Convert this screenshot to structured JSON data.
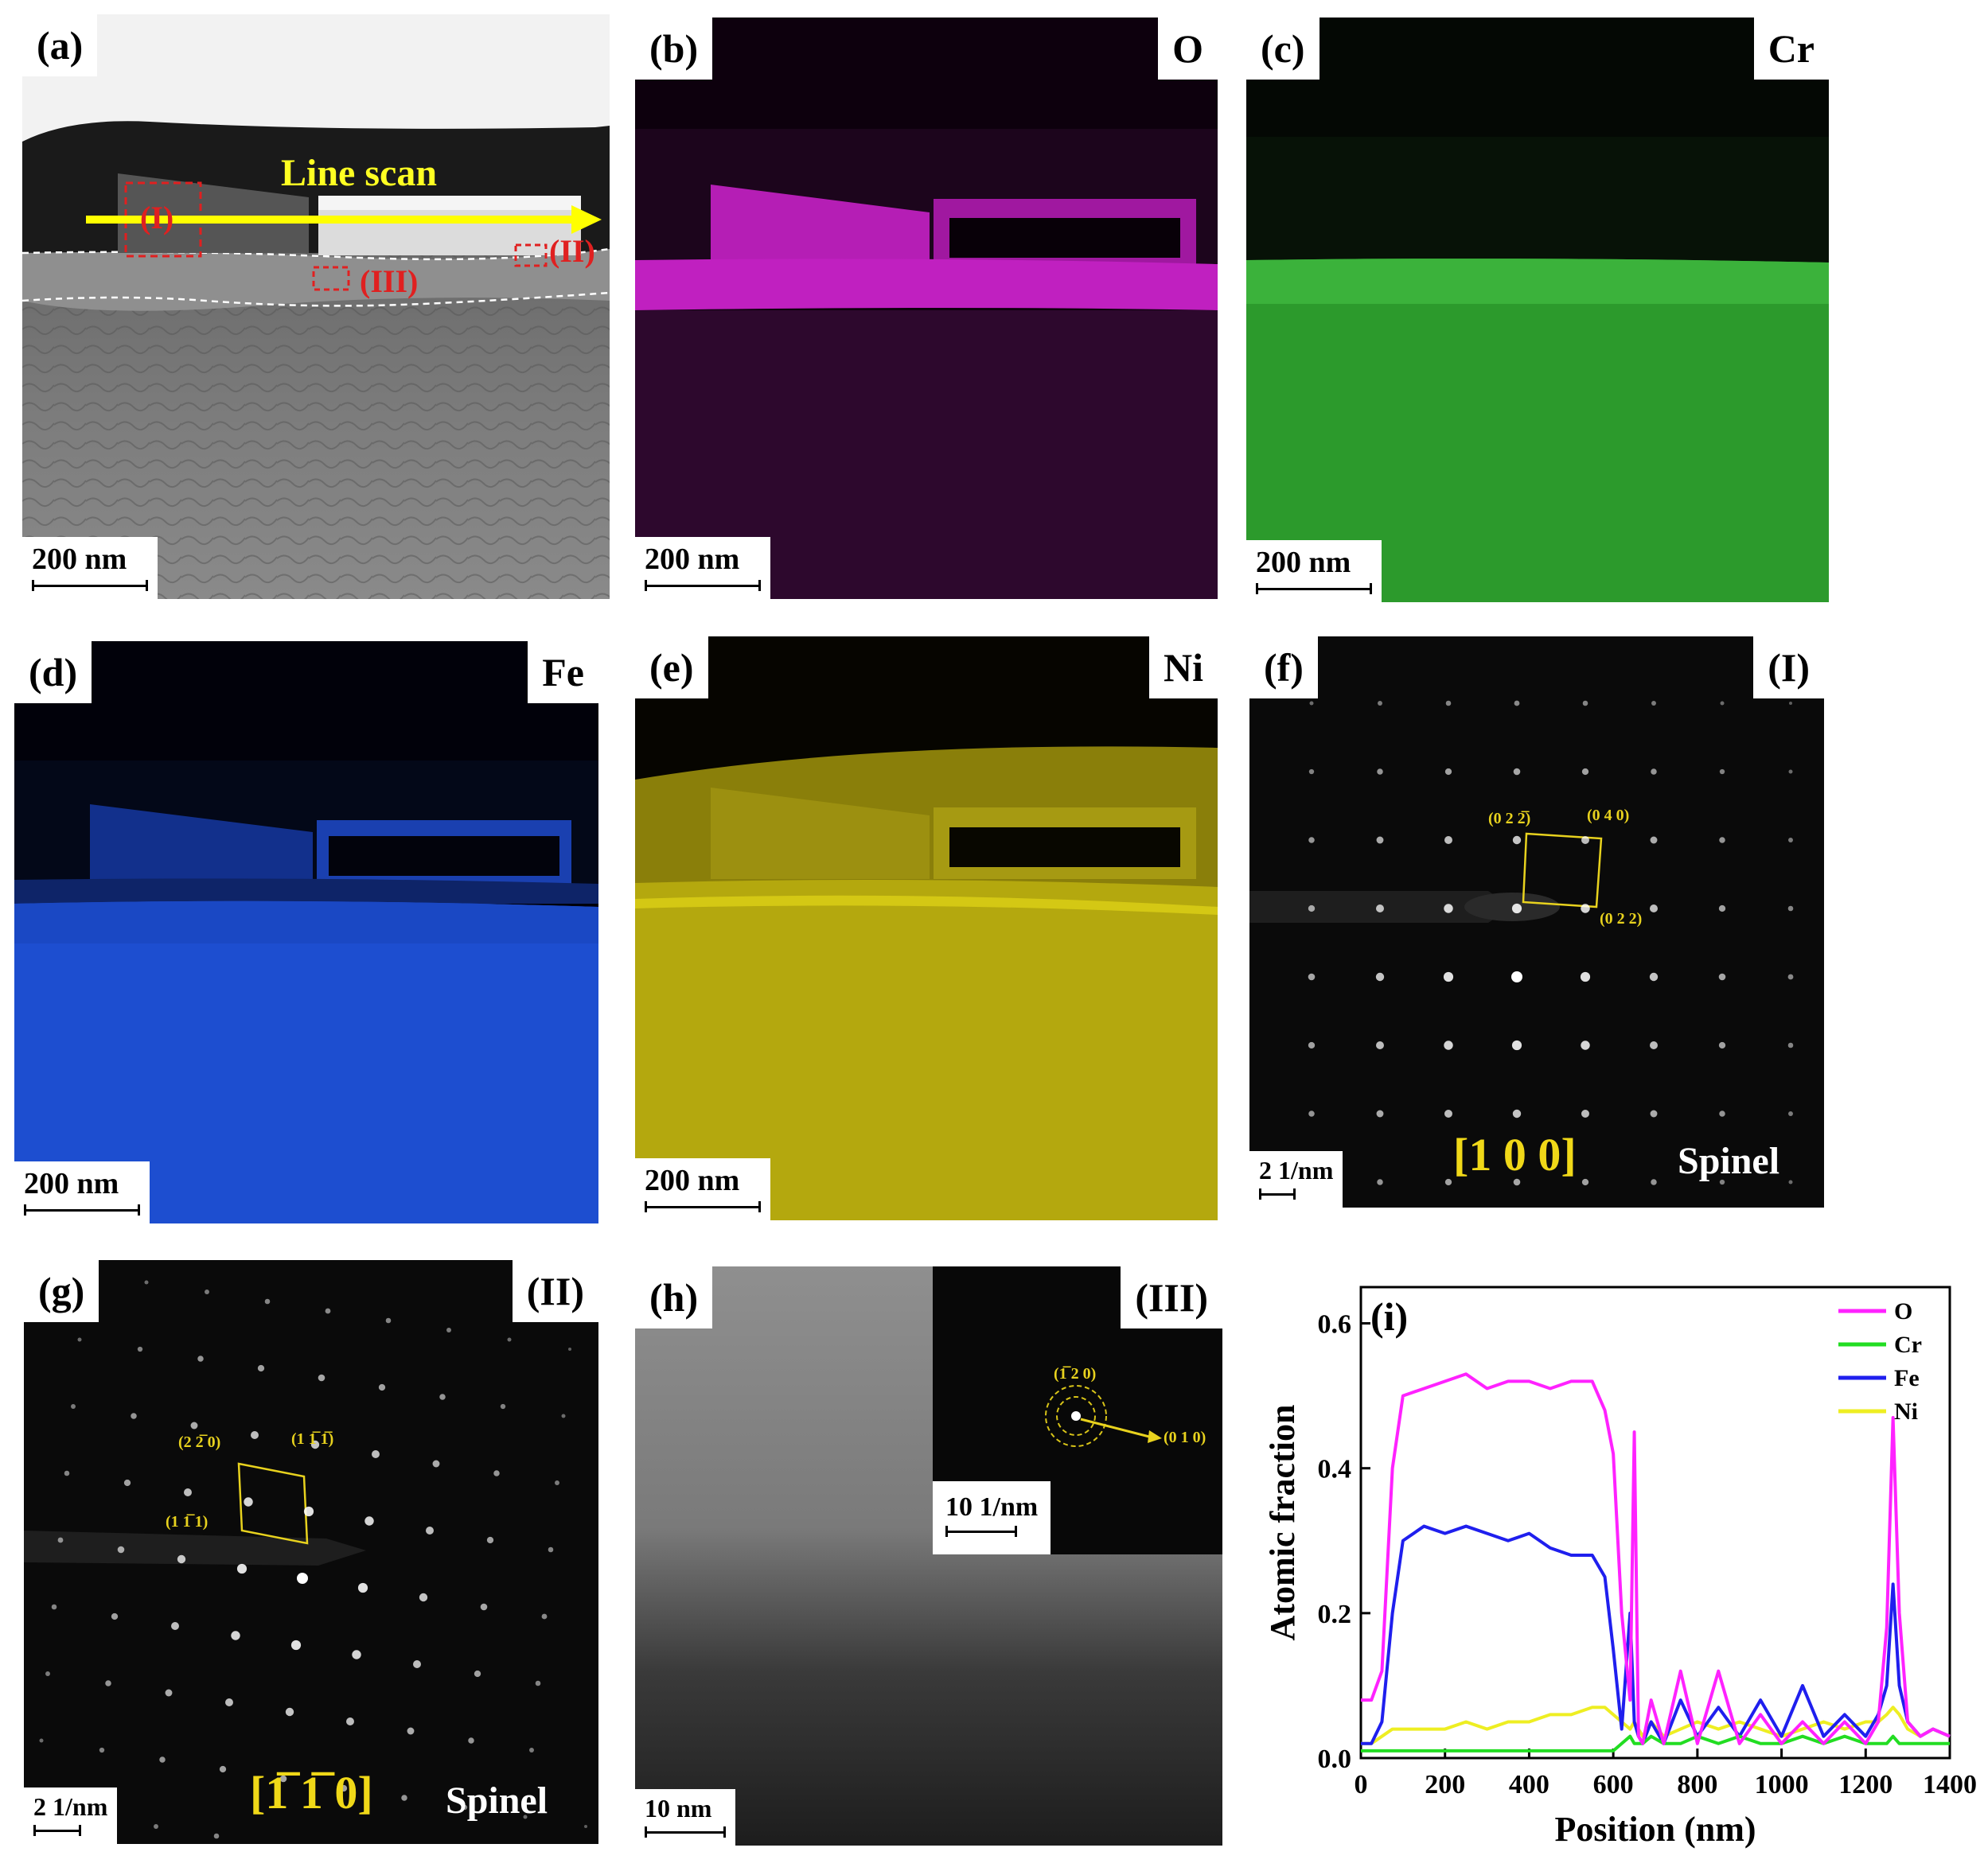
{
  "panels": {
    "a": {
      "label": "(a)",
      "arrow_label": "Line scan",
      "regions": [
        "(I)",
        "(II)",
        "(III)"
      ],
      "scale": "200 nm"
    },
    "b": {
      "label": "(b)",
      "element": "O",
      "scale": "200 nm",
      "color": "#c020c0"
    },
    "c": {
      "label": "(c)",
      "element": "Cr",
      "scale": "200 nm",
      "color": "#2ea82e"
    },
    "d": {
      "label": "(d)",
      "element": "Fe",
      "scale": "200 nm",
      "color": "#1e50d2"
    },
    "e": {
      "label": "(e)",
      "element": "Ni",
      "scale": "200 nm",
      "color": "#b4a80e"
    },
    "f": {
      "label": "(f)",
      "region": "(I)",
      "scale": "2 1/nm",
      "zone_axis": "[1 0 0]",
      "phase": "Spinel",
      "spots": [
        "(0 2 2̅)",
        "(0 4 0)",
        "(0 2 2)"
      ]
    },
    "g": {
      "label": "(g)",
      "region": "(II)",
      "scale": "2 1/nm",
      "zone_axis": "[1̅ 1̅ 0]",
      "phase": "Spinel",
      "spots": [
        "(2 2̅ 0)",
        "(1 1̅ 1̅)",
        "(1 1̅ 1)"
      ]
    },
    "h": {
      "label": "(h)",
      "region": "(III)",
      "scale": "10 nm",
      "inset_scale": "10 1/nm",
      "spots": [
        "(1̅ 2 0)",
        "(0 1 0)"
      ]
    }
  },
  "chart_data": {
    "label": "(i)",
    "type": "line",
    "xlabel": "Position (nm)",
    "ylabel": "Atomic fraction",
    "xlim": [
      0,
      1400
    ],
    "ylim": [
      0,
      0.65
    ],
    "xticks": [
      0,
      200,
      400,
      600,
      800,
      1000,
      1200,
      1400
    ],
    "yticks": [
      0.0,
      0.2,
      0.4,
      0.6
    ],
    "legend_position": "top-right",
    "x": [
      0,
      25,
      50,
      75,
      100,
      150,
      200,
      250,
      300,
      350,
      400,
      450,
      500,
      550,
      580,
      600,
      620,
      640,
      650,
      660,
      670,
      690,
      720,
      760,
      800,
      850,
      900,
      950,
      1000,
      1050,
      1100,
      1150,
      1200,
      1230,
      1250,
      1265,
      1280,
      1300,
      1330,
      1360,
      1400
    ],
    "series": [
      {
        "name": "O",
        "color": "#ff22ff",
        "values": [
          0.08,
          0.08,
          0.12,
          0.4,
          0.5,
          0.51,
          0.52,
          0.53,
          0.51,
          0.52,
          0.52,
          0.51,
          0.52,
          0.52,
          0.48,
          0.42,
          0.2,
          0.08,
          0.45,
          0.03,
          0.02,
          0.08,
          0.02,
          0.12,
          0.02,
          0.12,
          0.02,
          0.06,
          0.02,
          0.05,
          0.02,
          0.05,
          0.02,
          0.05,
          0.18,
          0.47,
          0.2,
          0.05,
          0.03,
          0.04,
          0.03
        ]
      },
      {
        "name": "Cr",
        "color": "#22dd22",
        "values": [
          0.01,
          0.01,
          0.01,
          0.01,
          0.01,
          0.01,
          0.01,
          0.01,
          0.01,
          0.01,
          0.01,
          0.01,
          0.01,
          0.01,
          0.01,
          0.01,
          0.02,
          0.03,
          0.02,
          0.02,
          0.02,
          0.03,
          0.02,
          0.02,
          0.03,
          0.02,
          0.03,
          0.02,
          0.02,
          0.03,
          0.02,
          0.03,
          0.02,
          0.02,
          0.02,
          0.03,
          0.02,
          0.02,
          0.02,
          0.02,
          0.02
        ]
      },
      {
        "name": "Fe",
        "color": "#1f1fee",
        "values": [
          0.02,
          0.02,
          0.05,
          0.2,
          0.3,
          0.32,
          0.31,
          0.32,
          0.31,
          0.3,
          0.31,
          0.29,
          0.28,
          0.28,
          0.25,
          0.15,
          0.04,
          0.2,
          0.05,
          0.03,
          0.02,
          0.05,
          0.02,
          0.08,
          0.03,
          0.07,
          0.03,
          0.08,
          0.03,
          0.1,
          0.03,
          0.06,
          0.03,
          0.06,
          0.1,
          0.24,
          0.1,
          0.05,
          0.03,
          0.04,
          0.03
        ]
      },
      {
        "name": "Ni",
        "color": "#eeee22",
        "values": [
          0.02,
          0.02,
          0.03,
          0.04,
          0.04,
          0.04,
          0.04,
          0.05,
          0.04,
          0.05,
          0.05,
          0.06,
          0.06,
          0.07,
          0.07,
          0.06,
          0.05,
          0.04,
          0.05,
          0.04,
          0.03,
          0.05,
          0.03,
          0.04,
          0.05,
          0.04,
          0.05,
          0.04,
          0.03,
          0.04,
          0.05,
          0.04,
          0.05,
          0.05,
          0.06,
          0.07,
          0.06,
          0.04,
          0.03,
          0.04,
          0.03
        ]
      }
    ]
  }
}
